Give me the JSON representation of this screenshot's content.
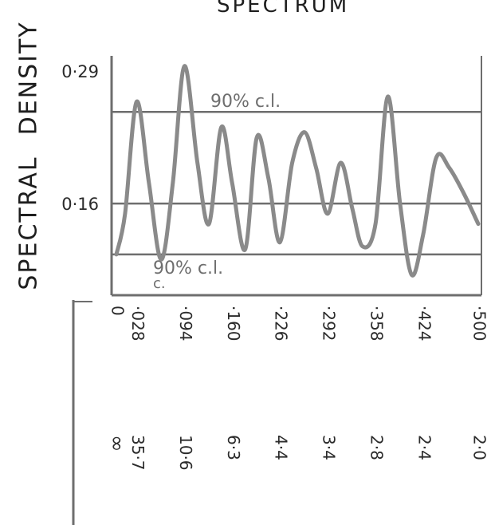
{
  "chart_data": {
    "type": "line",
    "title": "SPECTRUM",
    "ylabel_word1": "SPECTRAL",
    "ylabel_word2": "DENSITY",
    "xlabel": "",
    "ylim": [
      0.07,
      0.305
    ],
    "xlim": [
      0,
      0.5
    ],
    "y_ticks": [
      {
        "value": 0.29,
        "label": "0·29"
      },
      {
        "value": 0.16,
        "label": "0·16"
      }
    ],
    "reference_lines": [
      {
        "name": "upper_cl",
        "y": 0.25,
        "label": "90% c.l."
      },
      {
        "name": "mean",
        "y": 0.16,
        "label": ""
      },
      {
        "name": "lower_cl",
        "y": 0.11,
        "label": "90% c.l."
      }
    ],
    "lower_cl_sublabel": "c.",
    "frequency_ticks": [
      {
        "x": 0,
        "label": "0"
      },
      {
        "x": 0.028,
        "label": "·028"
      },
      {
        "x": 0.094,
        "label": "·094"
      },
      {
        "x": 0.16,
        "label": "·160"
      },
      {
        "x": 0.226,
        "label": "·226"
      },
      {
        "x": 0.292,
        "label": "·292"
      },
      {
        "x": 0.358,
        "label": "·358"
      },
      {
        "x": 0.424,
        "label": "·424"
      },
      {
        "x": 0.5,
        "label": "·500"
      }
    ],
    "period_labels": [
      "∞",
      "35·7",
      "10·6",
      "6·3",
      "4·4",
      "3·4",
      "2·8",
      "2·4",
      "2·0"
    ],
    "series": [
      {
        "x": [
          0,
          0.012,
          0.028,
          0.045,
          0.062,
          0.078,
          0.094,
          0.112,
          0.128,
          0.145,
          0.16,
          0.178,
          0.194,
          0.21,
          0.226,
          0.243,
          0.26,
          0.276,
          0.292,
          0.31,
          0.326,
          0.34,
          0.358,
          0.375,
          0.392,
          0.408,
          0.424,
          0.442,
          0.46,
          0.48,
          0.5
        ],
        "y": [
          0.11,
          0.15,
          0.26,
          0.18,
          0.105,
          0.18,
          0.295,
          0.2,
          0.14,
          0.235,
          0.18,
          0.115,
          0.225,
          0.185,
          0.122,
          0.2,
          0.23,
          0.195,
          0.15,
          0.2,
          0.155,
          0.118,
          0.14,
          0.265,
          0.16,
          0.09,
          0.13,
          0.205,
          0.195,
          0.17,
          0.14
        ]
      }
    ]
  }
}
